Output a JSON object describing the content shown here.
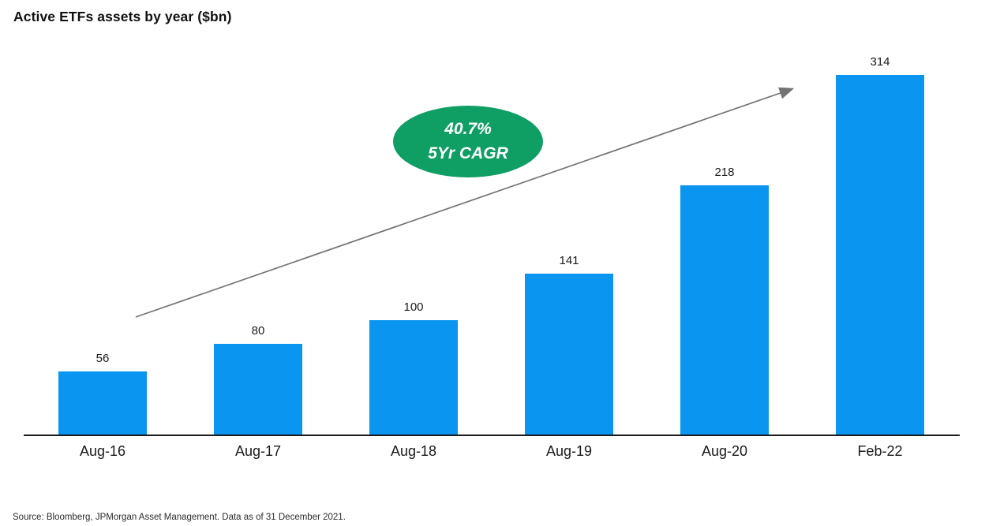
{
  "title": "Active ETFs assets by year ($bn)",
  "annotation": {
    "line1": "40.7%",
    "line2": "5Yr CAGR"
  },
  "source": "Source: Bloomberg, JPMorgan Asset Management. Data as of 31 December 2021.",
  "colors": {
    "bar": "#0a95f0",
    "ellipse": "#0f9e63",
    "arrow": "#737373",
    "axis": "#1a1a1a",
    "label_text": "#1a1a1a"
  },
  "chart_data": {
    "type": "bar",
    "categories": [
      "Aug-16",
      "Aug-17",
      "Aug-18",
      "Aug-19",
      "Aug-20",
      "Feb-22"
    ],
    "values": [
      56,
      80,
      100,
      141,
      218,
      314
    ],
    "title": "Active ETFs assets by year ($bn)",
    "xlabel": "",
    "ylabel": "",
    "ylim": [
      0,
      380
    ],
    "grid": false,
    "data_labels": true,
    "legend": "none",
    "annotation_text": "40.7% 5Yr CAGR",
    "bar_color": "#0a95f0"
  }
}
